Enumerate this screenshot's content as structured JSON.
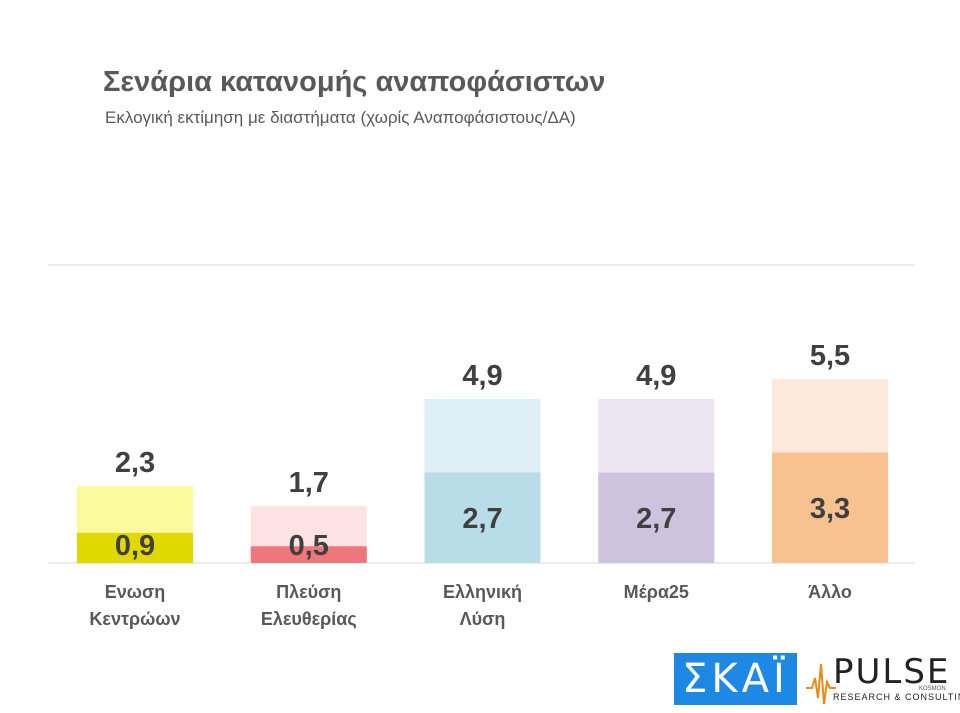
{
  "chart_data": {
    "type": "bar",
    "title": "Σενάρια κατανομής αναποφάσιστων",
    "subtitle": "Εκλογική εκτίμηση με διαστήματα (χωρίς Αναποφάσιστους/ΔΑ)",
    "categories": [
      [
        "Ενωση",
        "Κεντρώων"
      ],
      [
        "Πλεύση",
        "Ελευθερίας"
      ],
      [
        "Ελληνική",
        "Λύση"
      ],
      [
        "Μέρα25"
      ],
      [
        "Άλλο"
      ]
    ],
    "series": [
      {
        "values": [
          0.9,
          0.5,
          2.7,
          2.7,
          3.3
        ],
        "labels": [
          "0,9",
          "0,5",
          "2,7",
          "2,7",
          "3,3"
        ]
      },
      {
        "values": [
          2.3,
          1.7,
          4.9,
          4.9,
          5.5
        ],
        "labels": [
          "2,3",
          "1,7",
          "4,9",
          "4,9",
          "5,5"
        ]
      }
    ],
    "colors_low": [
      "#e0d900",
      "#ef767a",
      "#b9dde8",
      "#cdc3df",
      "#f8c190"
    ],
    "colors_high": [
      "#fbfb9e",
      "#fde3e4",
      "#ddeef4",
      "#ebe6f2",
      "#fde9dc"
    ],
    "ylim": [
      0,
      8.9
    ],
    "grid": false
  },
  "logos": {
    "skai": "ΣΚΑΪ",
    "pulse": "PULSE",
    "pulse_sub": "RESEARCH & CONSULTING",
    "pulse_kosmon": "KOSMON"
  }
}
